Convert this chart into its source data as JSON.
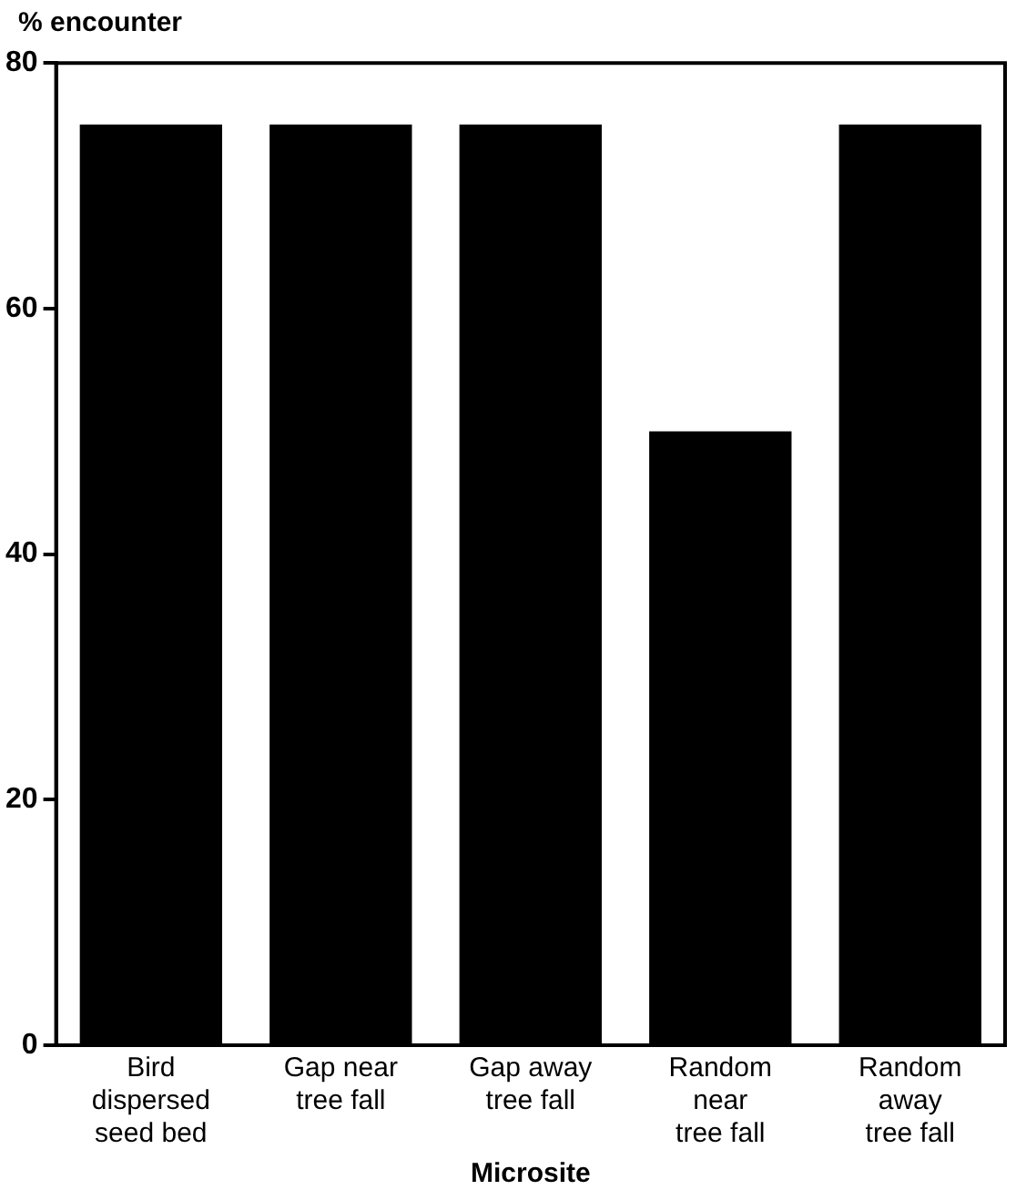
{
  "chart_data": {
    "type": "bar",
    "ylabel": "% encounter",
    "xlabel": "Microsite",
    "categories": [
      "Bird\ndispersed\nseed bed",
      "Gap near\ntree fall",
      "Gap away\ntree fall",
      "Random\nnear\ntree fall",
      "Random\naway\ntree fall"
    ],
    "values": [
      75,
      75,
      75,
      50,
      75
    ],
    "color": "#000000",
    "ylim": [
      0,
      80
    ],
    "yticks": [
      0,
      20,
      40,
      60,
      80
    ],
    "grid": false,
    "legend": false
  }
}
